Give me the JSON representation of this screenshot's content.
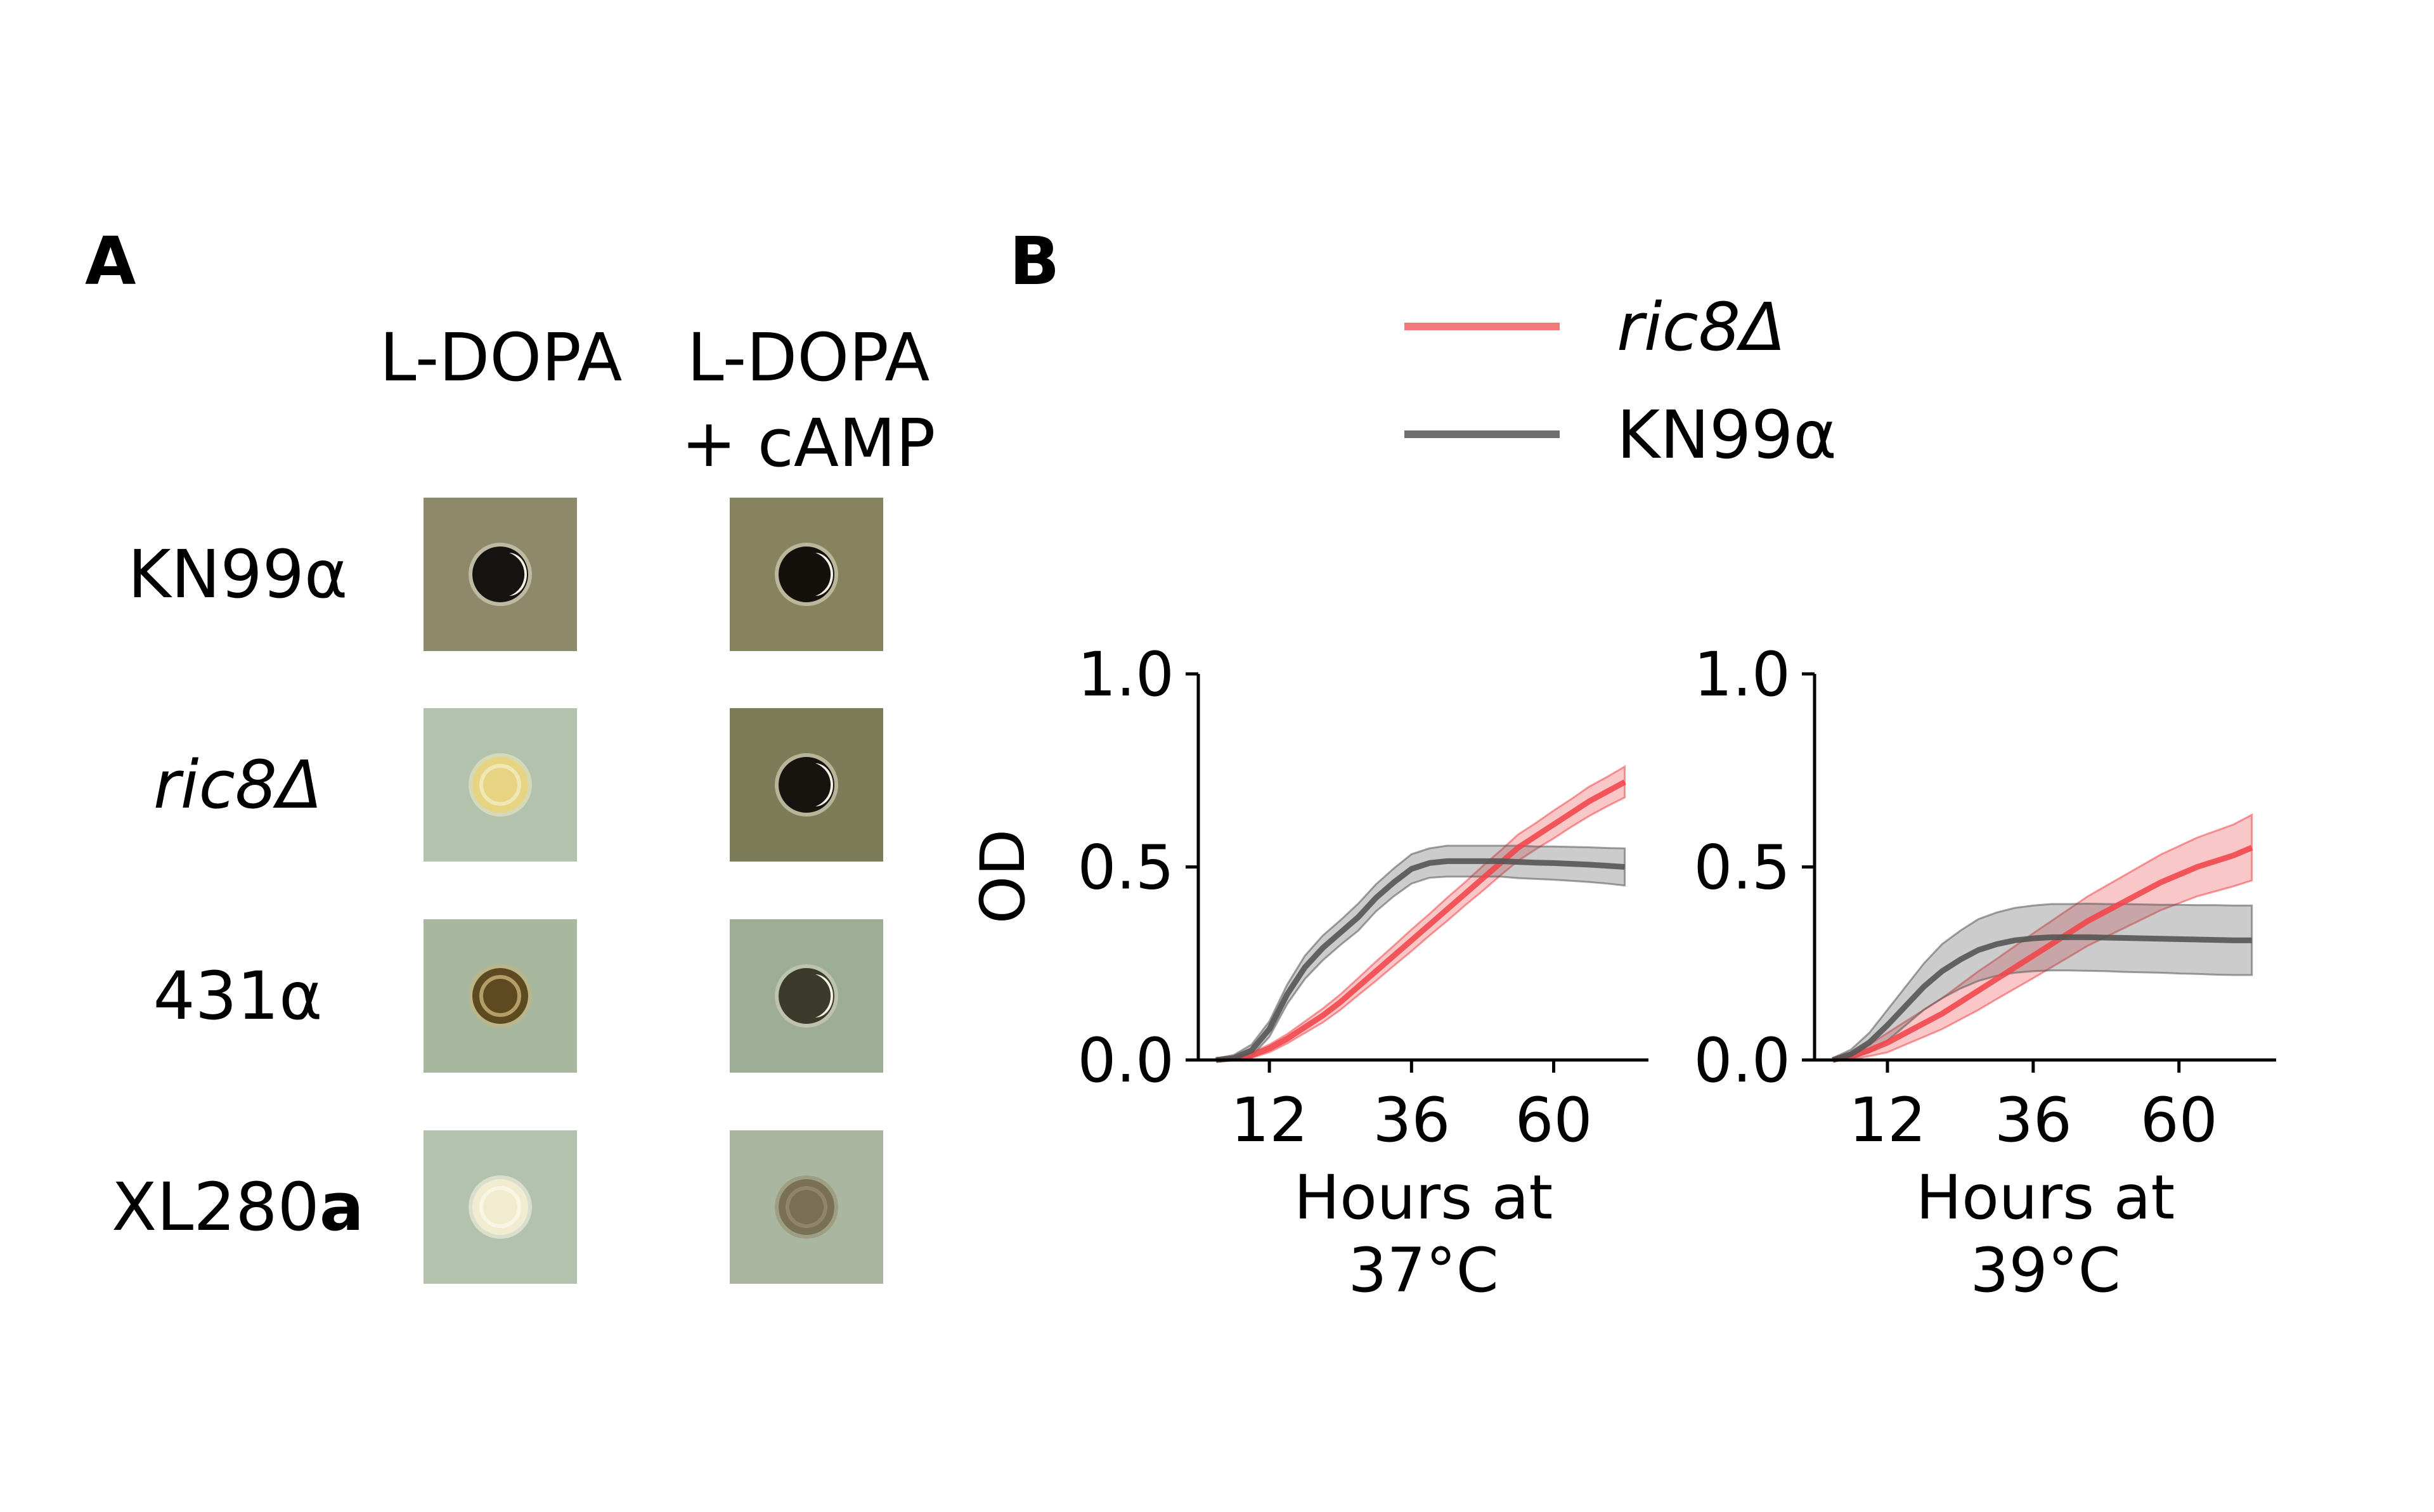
{
  "panel_a": {
    "label": "A",
    "columns": [
      "L-DOPA",
      "L-DOPA",
      "+ cAMP"
    ],
    "rows": [
      {
        "strain": "KN99α",
        "italic": false,
        "suffix": ""
      },
      {
        "strain": "ric8Δ",
        "italic": true,
        "suffix": ""
      },
      {
        "strain": "431α",
        "italic": false,
        "suffix": ""
      },
      {
        "strain": "XL280",
        "italic": false,
        "suffix": "a"
      }
    ],
    "spots": [
      {
        "bg": "#8c8a6b",
        "colony": "#15130f",
        "ring": "#e8e2d0",
        "dark": true
      },
      {
        "bg": "#85845f",
        "colony": "#14110c",
        "ring": "#e8e2d0",
        "dark": true
      },
      {
        "bg": "#b2c2ad",
        "colony": "#e7d483",
        "ring": "#f3ecc0",
        "dark": false
      },
      {
        "bg": "#7d7c58",
        "colony": "#17140f",
        "ring": "#e8e2d0",
        "dark": true
      },
      {
        "bg": "#a8b89e",
        "colony": "#5e4a20",
        "ring": "#c9b37a",
        "dark": false
      },
      {
        "bg": "#9ead95",
        "colony": "#3b3a2b",
        "ring": "#d9d5c0",
        "dark": true
      },
      {
        "bg": "#b2c2ad",
        "colony": "#f1ecd0",
        "ring": "#fbf8e8",
        "dark": false
      },
      {
        "bg": "#a9b7a0",
        "colony": "#7a7056",
        "ring": "#958b6e",
        "dark": false
      }
    ]
  },
  "panel_b": {
    "label": "B",
    "legend": [
      {
        "name": "ric8Δ",
        "italic": true,
        "color": "#f4777a"
      },
      {
        "name": "KN99α",
        "italic": false,
        "color": "#6f6f6f"
      }
    ]
  },
  "chart_data": [
    {
      "type": "line",
      "xlabel": "Hours at",
      "xlabel2": "37°C",
      "ylabel": "OD",
      "xticks": [
        12,
        36,
        60
      ],
      "yticks": [
        "0.0",
        "0.5",
        "1.0"
      ],
      "xlim": [
        0,
        76
      ],
      "ylim": [
        0,
        1.0
      ],
      "series": [
        {
          "name": "ric8Δ",
          "color": "#f0474d",
          "x": [
            3,
            6,
            9,
            12,
            15,
            18,
            21,
            24,
            27,
            30,
            33,
            36,
            39,
            42,
            45,
            48,
            51,
            54,
            57,
            60,
            63,
            66,
            69,
            72
          ],
          "y": [
            0.0,
            0.004,
            0.012,
            0.03,
            0.055,
            0.085,
            0.115,
            0.15,
            0.19,
            0.23,
            0.27,
            0.31,
            0.35,
            0.39,
            0.43,
            0.47,
            0.51,
            0.55,
            0.58,
            0.61,
            0.64,
            0.67,
            0.695,
            0.72
          ],
          "band": [
            0.002,
            0.004,
            0.006,
            0.01,
            0.012,
            0.015,
            0.018,
            0.02,
            0.022,
            0.025,
            0.026,
            0.028,
            0.028,
            0.03,
            0.03,
            0.032,
            0.032,
            0.034,
            0.034,
            0.036,
            0.036,
            0.038,
            0.038,
            0.04
          ]
        },
        {
          "name": "KN99α",
          "color": "#555555",
          "x": [
            3,
            6,
            9,
            12,
            15,
            18,
            21,
            24,
            27,
            30,
            33,
            36,
            39,
            42,
            45,
            48,
            51,
            54,
            57,
            60,
            63,
            66,
            69,
            72
          ],
          "y": [
            0.0,
            0.005,
            0.025,
            0.08,
            0.17,
            0.24,
            0.29,
            0.33,
            0.37,
            0.42,
            0.46,
            0.495,
            0.51,
            0.515,
            0.515,
            0.515,
            0.515,
            0.513,
            0.511,
            0.51,
            0.508,
            0.506,
            0.503,
            0.5
          ],
          "band": [
            0.004,
            0.008,
            0.015,
            0.02,
            0.025,
            0.03,
            0.032,
            0.032,
            0.035,
            0.035,
            0.036,
            0.038,
            0.038,
            0.04,
            0.04,
            0.04,
            0.04,
            0.042,
            0.042,
            0.043,
            0.044,
            0.045,
            0.046,
            0.048
          ]
        }
      ]
    },
    {
      "type": "line",
      "xlabel": "Hours at",
      "xlabel2": "39°C",
      "ylabel": "",
      "xticks": [
        12,
        36,
        60
      ],
      "yticks": [
        "0.0",
        "0.5",
        "1.0"
      ],
      "xlim": [
        0,
        76
      ],
      "ylim": [
        0,
        1.0
      ],
      "series": [
        {
          "name": "ric8Δ",
          "color": "#f0474d",
          "x": [
            3,
            6,
            9,
            12,
            15,
            18,
            21,
            24,
            27,
            30,
            33,
            36,
            39,
            42,
            45,
            48,
            51,
            54,
            57,
            60,
            63,
            66,
            69,
            72
          ],
          "y": [
            0.0,
            0.01,
            0.025,
            0.045,
            0.07,
            0.095,
            0.12,
            0.15,
            0.18,
            0.21,
            0.24,
            0.27,
            0.3,
            0.33,
            0.36,
            0.385,
            0.41,
            0.435,
            0.46,
            0.48,
            0.5,
            0.515,
            0.53,
            0.55
          ],
          "band": [
            0.004,
            0.008,
            0.015,
            0.025,
            0.03,
            0.035,
            0.04,
            0.045,
            0.05,
            0.052,
            0.055,
            0.058,
            0.06,
            0.062,
            0.064,
            0.066,
            0.068,
            0.07,
            0.072,
            0.074,
            0.076,
            0.078,
            0.08,
            0.085
          ]
        },
        {
          "name": "KN99α",
          "color": "#555555",
          "x": [
            3,
            6,
            9,
            12,
            15,
            18,
            21,
            24,
            27,
            30,
            33,
            36,
            39,
            42,
            45,
            48,
            51,
            54,
            57,
            60,
            63,
            66,
            69,
            72
          ],
          "y": [
            0.0,
            0.015,
            0.045,
            0.09,
            0.14,
            0.19,
            0.23,
            0.26,
            0.285,
            0.3,
            0.31,
            0.315,
            0.318,
            0.318,
            0.318,
            0.317,
            0.316,
            0.315,
            0.314,
            0.313,
            0.312,
            0.311,
            0.31,
            0.31
          ],
          "band": [
            0.005,
            0.012,
            0.025,
            0.04,
            0.05,
            0.06,
            0.07,
            0.075,
            0.08,
            0.082,
            0.084,
            0.085,
            0.086,
            0.086,
            0.087,
            0.087,
            0.088,
            0.088,
            0.088,
            0.089,
            0.089,
            0.09,
            0.09,
            0.09
          ]
        }
      ]
    }
  ]
}
